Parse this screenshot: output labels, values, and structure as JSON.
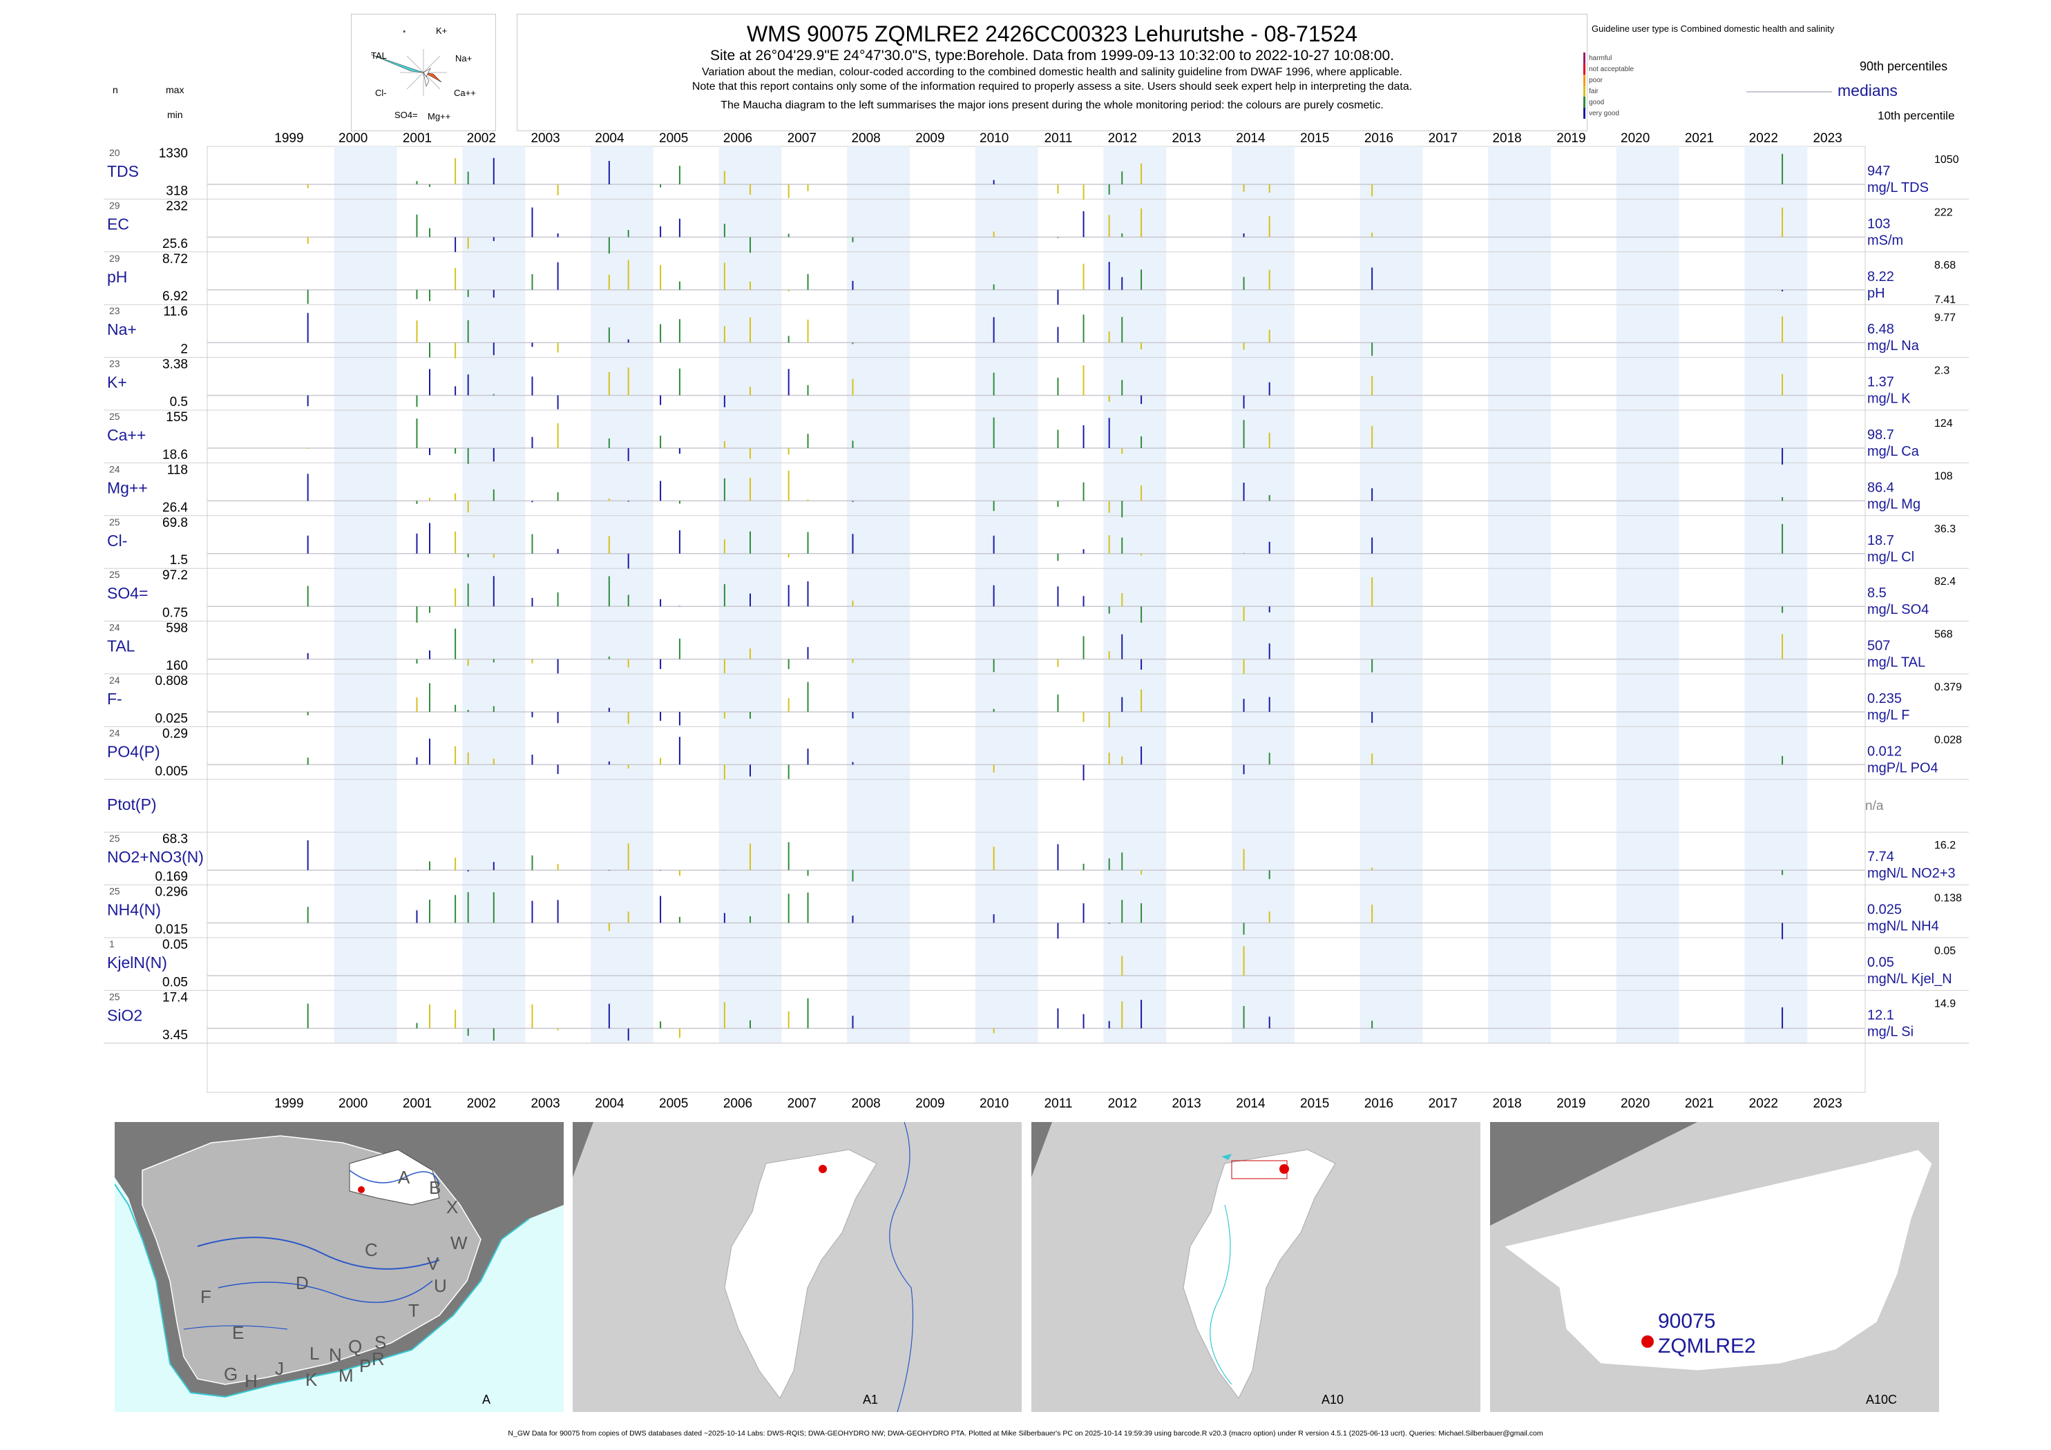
{
  "header": {
    "title": "WMS 90075 ZQMLRE2 2426CC00323 Lehurutshe - 08-71524",
    "site_line": "Site at 26°04'29.9\"E 24°47'30.0\"S, type:Borehole.  Data from 1999-09-13 10:32:00 to 2022-10-27 10:08:00.",
    "note1": "Variation about the median,  colour-coded according to the combined domestic health and salinity guideline from DWAF 1996, where applicable.",
    "note2": "Note that this report contains only some of the information required to properly assess a site. Users should seek expert help in interpreting the data.",
    "note3": "The Maucha diagram to the left summarises the major ions present during the whole monitoring period: the colours are purely cosmetic."
  },
  "maucha": {
    "labels": [
      "K+",
      "Na+",
      "Ca++",
      "Mg++",
      "SO4=",
      "Cl-",
      "TAL",
      "*"
    ]
  },
  "guideline": {
    "title": "Guideline user type is Combined domestic health and salinity",
    "levels": [
      {
        "label": "harmful",
        "color": "#9b1c6e"
      },
      {
        "label": "not acceptable",
        "color": "#e0002a"
      },
      {
        "label": "poor",
        "color": "#f39c12"
      },
      {
        "label": "fair",
        "color": "#d4c21a"
      },
      {
        "label": "good",
        "color": "#2e8b3a"
      },
      {
        "label": "very good",
        "color": "#1a1aa6"
      }
    ],
    "p90": "90th percentiles",
    "medians": "medians",
    "p10": "10th percentile"
  },
  "left_header": {
    "n": "n",
    "max": "max",
    "min": "min"
  },
  "chart_data": {
    "type": "bar",
    "x_axis_years": [
      "1999",
      "2000",
      "2001",
      "2002",
      "2003",
      "2004",
      "2005",
      "2006",
      "2007",
      "2008",
      "2009",
      "2010",
      "2011",
      "2012",
      "2013",
      "2014",
      "2015",
      "2016",
      "2017",
      "2018",
      "2019",
      "2020",
      "2021",
      "2022",
      "2023"
    ],
    "date_range": [
      "1999-09-13",
      "2022-10-27"
    ],
    "series": [
      {
        "name": "TDS",
        "n": "20",
        "max": "1330",
        "min": "318",
        "median": "947",
        "unit": "mg/L TDS",
        "p90": "1050",
        "p10": ""
      },
      {
        "name": "EC",
        "n": "29",
        "max": "232",
        "min": "25.6",
        "median": "103",
        "unit": "mS/m",
        "p90": "222",
        "p10": ""
      },
      {
        "name": "pH",
        "n": "29",
        "max": "8.72",
        "min": "6.92",
        "median": "8.22",
        "unit": "pH",
        "p90": "8.68",
        "p10": "7.41"
      },
      {
        "name": "Na+",
        "n": "23",
        "max": "11.6",
        "min": "2",
        "median": "6.48",
        "unit": "mg/L Na",
        "p90": "9.77",
        "p10": ""
      },
      {
        "name": "K+",
        "n": "23",
        "max": "3.38",
        "min": "0.5",
        "median": "1.37",
        "unit": "mg/L K",
        "p90": "2.3",
        "p10": ""
      },
      {
        "name": "Ca++",
        "n": "25",
        "max": "155",
        "min": "18.6",
        "median": "98.7",
        "unit": "mg/L Ca",
        "p90": "124",
        "p10": ""
      },
      {
        "name": "Mg++",
        "n": "24",
        "max": "118",
        "min": "26.4",
        "median": "86.4",
        "unit": "mg/L Mg",
        "p90": "108",
        "p10": ""
      },
      {
        "name": "Cl-",
        "n": "25",
        "max": "69.8",
        "min": "1.5",
        "median": "18.7",
        "unit": "mg/L Cl",
        "p90": "36.3",
        "p10": ""
      },
      {
        "name": "SO4=",
        "n": "25",
        "max": "97.2",
        "min": "0.75",
        "median": "8.5",
        "unit": "mg/L SO4",
        "p90": "82.4",
        "p10": ""
      },
      {
        "name": "TAL",
        "n": "24",
        "max": "598",
        "min": "160",
        "median": "507",
        "unit": "mg/L TAL",
        "p90": "568",
        "p10": ""
      },
      {
        "name": "F-",
        "n": "24",
        "max": "0.808",
        "min": "0.025",
        "median": "0.235",
        "unit": "mg/L F",
        "p90": "0.379",
        "p10": ""
      },
      {
        "name": "PO4(P)",
        "n": "24",
        "max": "0.29",
        "min": "0.005",
        "median": "0.012",
        "unit": "mgP/L PO4",
        "p90": "0.028",
        "p10": ""
      },
      {
        "name": "Ptot(P)",
        "n": "",
        "max": "",
        "min": "",
        "median": "n/a",
        "unit": "",
        "p90": "",
        "p10": ""
      },
      {
        "name": "NO2+NO3(N)",
        "n": "25",
        "max": "68.3",
        "min": "0.169",
        "median": "7.74",
        "unit": "mgN/L NO2+3",
        "p90": "16.2",
        "p10": ""
      },
      {
        "name": "NH4(N)",
        "n": "25",
        "max": "0.296",
        "min": "0.015",
        "median": "0.025",
        "unit": "mgN/L NH4",
        "p90": "0.138",
        "p10": ""
      },
      {
        "name": "KjelN(N)",
        "n": "1",
        "max": "0.05",
        "min": "0.05",
        "median": "0.05",
        "unit": "mgN/L Kjel_N",
        "p90": "0.05",
        "p10": ""
      },
      {
        "name": "SiO2",
        "n": "25",
        "max": "17.4",
        "min": "3.45",
        "median": "12.1",
        "unit": "mg/L Si",
        "p90": "14.9",
        "p10": ""
      }
    ]
  },
  "maps": {
    "A_label": "A",
    "A1_label": "A1",
    "A10_label": "A10",
    "A10C_label": "A10C",
    "drainage_letters": [
      "A",
      "B",
      "X",
      "C",
      "D",
      "W",
      "V",
      "U",
      "T",
      "F",
      "E",
      "G",
      "H",
      "J",
      "K",
      "L",
      "M",
      "N",
      "P",
      "Q",
      "R",
      "S"
    ],
    "site_id": "90075",
    "site_name": "ZQMLRE2"
  },
  "footer": "N_GW Data for 90075 from copies of DWS databases dated ~2025-10-14 Labs: DWS-RQIS; DWA-GEOHYDRO NW; DWA-GEOHYDRO PTA. Plotted at Mike Silberbauer's PC on 2025-10-14 19:59:39 using barcode.R v20.3 (macro option) under R version 4.5.1 (2025-06-13 ucrt). Queries: Michael.Silberbauer@gmail.com"
}
